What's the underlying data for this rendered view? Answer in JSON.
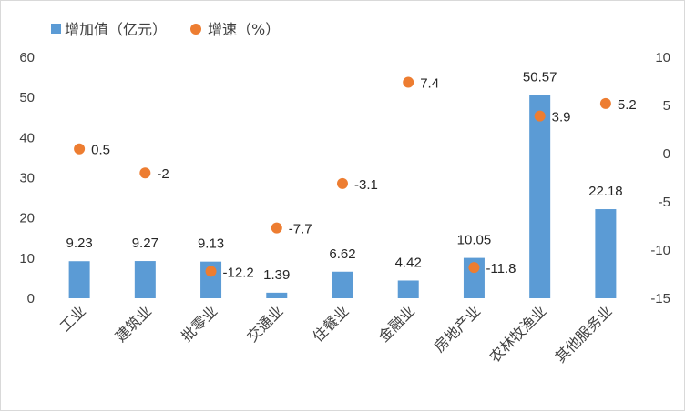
{
  "chart_data": {
    "type": "bar+scatter",
    "title": "",
    "categories": [
      "工业",
      "建筑业",
      "批零业",
      "交通业",
      "住餐业",
      "金融业",
      "房地产业",
      "农林牧渔业",
      "其他服务业"
    ],
    "series": [
      {
        "name": "增加值（亿元）",
        "type": "bar",
        "axis": "left",
        "color": "#5b9bd5",
        "values": [
          9.23,
          9.27,
          9.13,
          1.39,
          6.62,
          4.42,
          10.05,
          50.57,
          22.18
        ],
        "labels": [
          "9.23",
          "9.27",
          "9.13",
          "1.39",
          "6.62",
          "4.42",
          "10.05",
          "50.57",
          "22.18"
        ]
      },
      {
        "name": "增速（%）",
        "type": "scatter",
        "axis": "right",
        "color": "#ed7d31",
        "values": [
          0.5,
          -2,
          -12.2,
          -7.7,
          -3.1,
          7.4,
          -11.8,
          3.9,
          5.2
        ],
        "labels": [
          "0.5",
          "-2",
          "-12.2",
          "-7.7",
          "-3.1",
          "7.4",
          "-11.8",
          "3.9",
          "5.2"
        ]
      }
    ],
    "y_left": {
      "min": 0,
      "max": 60,
      "ticks": [
        "0",
        "10",
        "20",
        "30",
        "40",
        "50",
        "60"
      ]
    },
    "y_right": {
      "min": -15,
      "max": 10,
      "ticks": [
        "-15",
        "-10",
        "-5",
        "0",
        "5",
        "10"
      ]
    },
    "grid": false,
    "legend_position": "top-left"
  }
}
